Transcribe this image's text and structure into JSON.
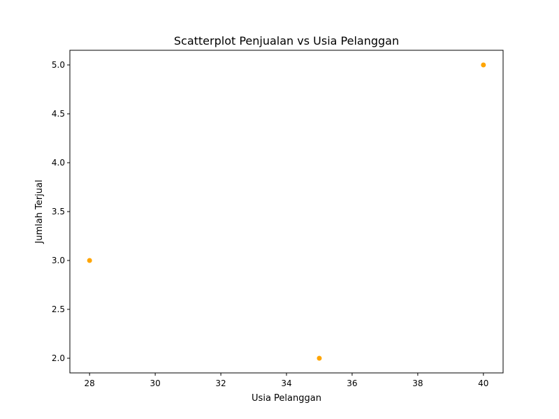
{
  "chart_data": {
    "type": "scatter",
    "title": "Scatterplot Penjualan vs Usia Pelanggan",
    "xlabel": "Usia Pelanggan",
    "ylabel": "Jumlah Terjual",
    "xlim": [
      27.4,
      40.6
    ],
    "ylim": [
      1.85,
      5.15
    ],
    "x_ticks": [
      28,
      30,
      32,
      34,
      36,
      38,
      40
    ],
    "y_ticks": [
      2.0,
      2.5,
      3.0,
      3.5,
      4.0,
      4.5,
      5.0
    ],
    "x_tick_labels": [
      "28",
      "30",
      "32",
      "34",
      "36",
      "38",
      "40"
    ],
    "y_tick_labels": [
      "2.0",
      "2.5",
      "3.0",
      "3.5",
      "4.0",
      "4.5",
      "5.0"
    ],
    "grid": false,
    "series": [
      {
        "color": "#ffa500",
        "points": [
          {
            "x": 28,
            "y": 3
          },
          {
            "x": 35,
            "y": 2
          },
          {
            "x": 40,
            "y": 5
          }
        ]
      }
    ]
  }
}
